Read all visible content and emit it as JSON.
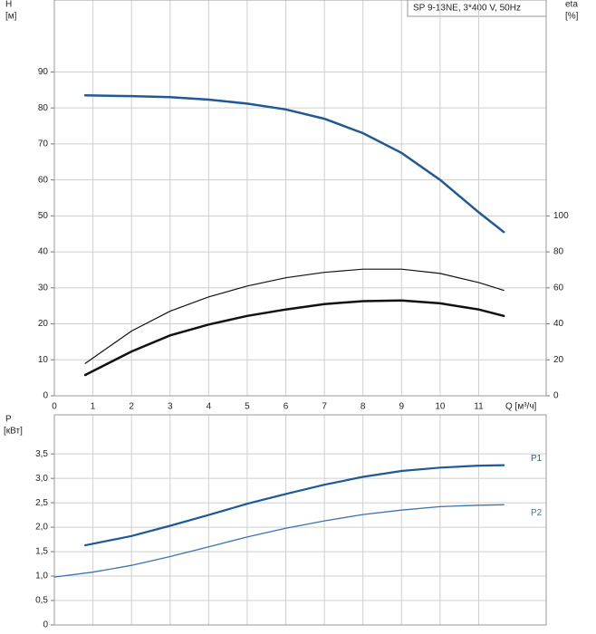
{
  "chart_data": [
    {
      "type": "line",
      "title": "SP 9-13NE, 3*400 V, 50Hz",
      "y_label": "H",
      "y_unit": "[м]",
      "y2_label": "eta",
      "y2_unit": "[%]",
      "x_label": "Q [м³/ч]",
      "x": [
        0.8,
        2,
        3,
        4,
        5,
        6,
        7,
        8,
        9,
        10,
        11,
        11.65
      ],
      "xlim": [
        0,
        12.75
      ],
      "xticks": [
        0,
        1,
        2,
        3,
        4,
        5,
        6,
        7,
        8,
        9,
        10,
        11
      ],
      "ylim": [
        0,
        110
      ],
      "yticks": [
        0,
        10,
        20,
        30,
        40,
        50,
        60,
        70,
        80,
        90
      ],
      "y2lim": [
        0,
        220
      ],
      "y2ticks": [
        0,
        20,
        40,
        60,
        80,
        100
      ],
      "grid": true,
      "series": [
        {
          "color": "#1f5a95",
          "width": 2.5,
          "values": [
            83.5,
            83.3,
            83,
            82.3,
            81.2,
            79.6,
            77,
            73,
            67.5,
            60,
            51,
            45.5
          ]
        },
        {
          "color": "#111111",
          "width": 1.2,
          "axis": "y2",
          "values": [
            18,
            36,
            47,
            55,
            61,
            65.6,
            68.6,
            70.4,
            70.4,
            68,
            63,
            58.6
          ]
        },
        {
          "color": "#111111",
          "width": 2.5,
          "axis": "y2",
          "values": [
            11.6,
            24.6,
            33.6,
            39.6,
            44.4,
            48,
            51,
            52.6,
            53,
            51.4,
            48,
            44.4
          ]
        }
      ]
    },
    {
      "type": "line",
      "y_label": "P",
      "y_unit": "[кВт]",
      "xlim": [
        0,
        12.75
      ],
      "xticks": [
        0,
        1,
        2,
        3,
        4,
        5,
        6,
        7,
        8,
        9,
        10,
        11
      ],
      "ylim": [
        0,
        4.3
      ],
      "yticks": [
        0,
        {
          "value": 0.5,
          "label": "0,5"
        },
        {
          "value": 1,
          "label": "1,0"
        },
        {
          "value": 1.5,
          "label": "1,5"
        },
        {
          "value": 2,
          "label": "2,0"
        },
        {
          "value": 2.5,
          "label": "2,5"
        },
        {
          "value": 3,
          "label": "3,0"
        },
        {
          "value": 3.5,
          "label": "3,5"
        }
      ],
      "grid": true,
      "series": [
        {
          "name": "P1",
          "color": "#1f5a95",
          "width": 2.2,
          "x": [
            0.8,
            2,
            3,
            4,
            5,
            6,
            7,
            8,
            9,
            10,
            11,
            11.65
          ],
          "values": [
            1.63,
            1.82,
            2.03,
            2.25,
            2.48,
            2.68,
            2.87,
            3.03,
            3.15,
            3.22,
            3.26,
            3.27
          ]
        },
        {
          "name": "P2",
          "color": "#3a74ad",
          "width": 1.3,
          "x": [
            0,
            1,
            2,
            3,
            4,
            5,
            6,
            7,
            8,
            9,
            10,
            11,
            11.65
          ],
          "values": [
            0.98,
            1.08,
            1.22,
            1.4,
            1.6,
            1.8,
            1.98,
            2.13,
            2.26,
            2.35,
            2.42,
            2.45,
            2.46
          ]
        }
      ]
    }
  ]
}
